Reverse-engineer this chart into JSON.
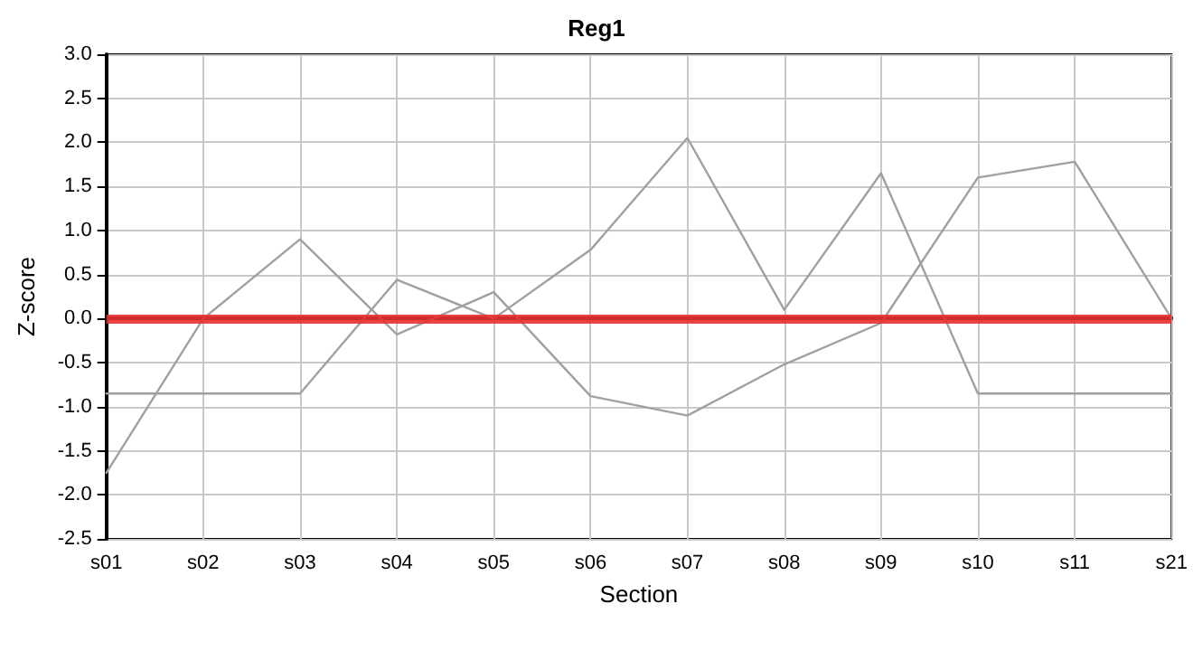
{
  "chart_data": {
    "type": "line",
    "title": "Reg1",
    "xlabel": "Section",
    "ylabel": "Z-score",
    "categories": [
      "s01",
      "s02",
      "s03",
      "s04",
      "s05",
      "s06",
      "s07",
      "s08",
      "s09",
      "s10",
      "s11",
      "s21"
    ],
    "series": [
      {
        "color": "#a0a0a0",
        "values": [
          -1.75,
          0.0,
          0.9,
          -0.18,
          0.3,
          -0.88,
          -1.1,
          -0.52,
          -0.05,
          1.6,
          1.78,
          0.0
        ]
      },
      {
        "color": "#a0a0a0",
        "values": [
          -0.85,
          -0.85,
          -0.85,
          0.44,
          0.0,
          0.78,
          2.05,
          0.1,
          1.65,
          -0.85,
          -0.85,
          -0.85
        ]
      }
    ],
    "ylim": [
      -2.5,
      3.0
    ],
    "yticks": [
      -2.5,
      {
        "value": -2,
        "label": "-2.0"
      },
      -1.5,
      {
        "value": -1,
        "label": "-1.0"
      },
      -0.5,
      {
        "value": 0,
        "label": "0.0"
      },
      0.5,
      {
        "value": 1,
        "label": "1.0"
      },
      1.5,
      {
        "value": 2,
        "label": "2.0"
      },
      2.5,
      {
        "value": 3,
        "label": "3.0"
      }
    ],
    "ref_lines": [
      {
        "axis": "y",
        "value": 0,
        "color": "#e83030"
      }
    ],
    "grid": true,
    "marker": "none",
    "line_style": "solid"
  }
}
